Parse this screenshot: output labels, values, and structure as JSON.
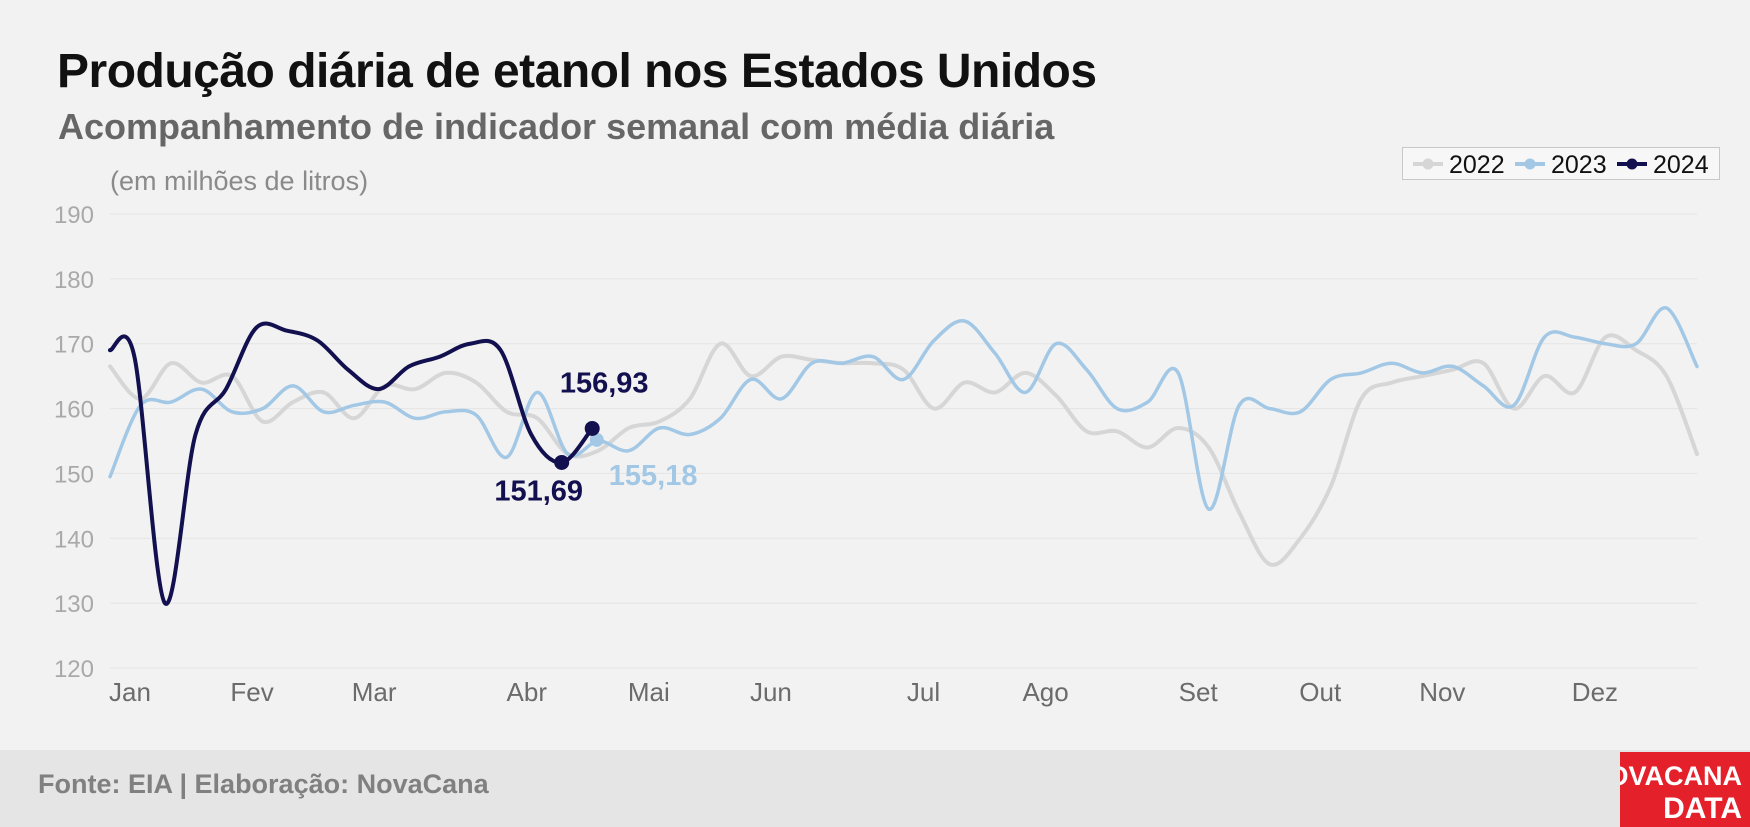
{
  "title": "Produção diária de etanol nos Estados Unidos",
  "subtitle": "Acompanhamento de indicador semanal com média diária",
  "unit_note": "(em milhões de litros)",
  "source": "Fonte: EIA | Elaboração: NovaCana",
  "logo": {
    "line1": "NOVACANA",
    "line2": "DATA"
  },
  "colors": {
    "2022": "#d6d6d6",
    "2023": "#a2c8e6",
    "2024": "#12104f",
    "background": "#f2f2f2",
    "grid": "#e4e4e4",
    "logo_bg": "#e4202a"
  },
  "chart_data": {
    "type": "line",
    "title": "Produção diária de etanol nos Estados Unidos",
    "subtitle": "Acompanhamento de indicador semanal com média diária",
    "ylabel": "(em milhões de litros)",
    "xlabel": "",
    "ylim": [
      120,
      190
    ],
    "yticks": [
      120,
      130,
      140,
      150,
      160,
      170,
      180,
      190
    ],
    "xlim": [
      0,
      52
    ],
    "month_labels": [
      "Jan",
      "Fev",
      "Mar",
      "Abr",
      "Mai",
      "Jun",
      "Jul",
      "Ago",
      "Set",
      "Out",
      "Nov",
      "Dez"
    ],
    "month_weeks": [
      0,
      4,
      8,
      13,
      17,
      21,
      26,
      30,
      35,
      39,
      43,
      48
    ],
    "grid": true,
    "legend_position": "top-right",
    "series": [
      {
        "name": "2022",
        "color": "#d6d6d6",
        "points": [
          [
            0,
            166.5
          ],
          [
            1,
            161.5
          ],
          [
            2,
            167
          ],
          [
            3,
            164
          ],
          [
            4,
            165
          ],
          [
            5,
            158
          ],
          [
            6,
            161
          ],
          [
            7,
            162.5
          ],
          [
            8,
            158.5
          ],
          [
            9,
            163.5
          ],
          [
            10,
            163
          ],
          [
            11,
            165.5
          ],
          [
            12,
            164
          ],
          [
            13,
            159.5
          ],
          [
            14,
            158.5
          ],
          [
            15,
            153
          ],
          [
            16,
            153.5
          ],
          [
            17,
            157
          ],
          [
            18,
            158
          ],
          [
            19,
            161.5
          ],
          [
            20,
            170
          ],
          [
            21,
            165
          ],
          [
            22,
            168
          ],
          [
            23,
            167.5
          ],
          [
            24,
            167
          ],
          [
            25,
            167
          ],
          [
            26,
            166
          ],
          [
            27,
            160
          ],
          [
            28,
            164
          ],
          [
            29,
            162.5
          ],
          [
            30,
            165.5
          ],
          [
            31,
            162
          ],
          [
            32,
            156.5
          ],
          [
            33,
            156.5
          ],
          [
            34,
            154
          ],
          [
            35,
            157
          ],
          [
            36,
            154
          ],
          [
            37,
            144
          ],
          [
            38,
            136
          ],
          [
            39,
            140
          ],
          [
            40,
            148
          ],
          [
            41,
            161.5
          ],
          [
            42,
            164
          ],
          [
            43,
            165
          ],
          [
            44,
            166
          ],
          [
            45,
            167
          ],
          [
            46,
            160
          ],
          [
            47,
            165
          ],
          [
            48,
            162.5
          ],
          [
            49,
            171
          ],
          [
            50,
            169
          ],
          [
            51,
            165
          ],
          [
            52,
            153
          ]
        ]
      },
      {
        "name": "2023",
        "color": "#a2c8e6",
        "points": [
          [
            0,
            149.5
          ],
          [
            1,
            160.5
          ],
          [
            2,
            161
          ],
          [
            3,
            163
          ],
          [
            4,
            159.5
          ],
          [
            5,
            160
          ],
          [
            6,
            163.5
          ],
          [
            7,
            159.5
          ],
          [
            8,
            160.5
          ],
          [
            9,
            161
          ],
          [
            10,
            158.5
          ],
          [
            11,
            159.5
          ],
          [
            12,
            159
          ],
          [
            13,
            152.5
          ],
          [
            14,
            162.5
          ],
          [
            15,
            153
          ],
          [
            16,
            155
          ],
          [
            17,
            153.5
          ],
          [
            18,
            157
          ],
          [
            19,
            156
          ],
          [
            20,
            158.5
          ],
          [
            21,
            164.5
          ],
          [
            22,
            161.5
          ],
          [
            23,
            167
          ],
          [
            24,
            167
          ],
          [
            25,
            168
          ],
          [
            26,
            164.5
          ],
          [
            27,
            170.5
          ],
          [
            28,
            173.5
          ],
          [
            29,
            168.5
          ],
          [
            30,
            162.5
          ],
          [
            31,
            170
          ],
          [
            32,
            166
          ],
          [
            33,
            160
          ],
          [
            34,
            161
          ],
          [
            35,
            165.5
          ],
          [
            36,
            144.5
          ],
          [
            37,
            160.5
          ],
          [
            38,
            160
          ],
          [
            39,
            159.5
          ],
          [
            40,
            164.5
          ],
          [
            41,
            165.5
          ],
          [
            42,
            167
          ],
          [
            43,
            165.5
          ],
          [
            44,
            166.5
          ],
          [
            45,
            163.5
          ],
          [
            46,
            160.5
          ],
          [
            47,
            171
          ],
          [
            48,
            171
          ],
          [
            49,
            170
          ],
          [
            50,
            170
          ],
          [
            51,
            175.5
          ],
          [
            52,
            166.5
          ]
        ]
      },
      {
        "name": "2024",
        "color": "#12104f",
        "points": [
          [
            0,
            169
          ],
          [
            0.8,
            168
          ],
          [
            1.8,
            130
          ],
          [
            2.8,
            156
          ],
          [
            3.8,
            163
          ],
          [
            4.8,
            172.5
          ],
          [
            5.8,
            172
          ],
          [
            6.8,
            170.5
          ],
          [
            7.8,
            166
          ],
          [
            8.8,
            163
          ],
          [
            9.8,
            166.5
          ],
          [
            10.8,
            168
          ],
          [
            11.8,
            170
          ],
          [
            12.8,
            169
          ],
          [
            13.8,
            156
          ],
          [
            14.8,
            151.69
          ],
          [
            15.8,
            156.93
          ]
        ]
      }
    ],
    "annotations": [
      {
        "text": "156,93",
        "series": "2024"
      },
      {
        "text": "151,69",
        "series": "2024"
      },
      {
        "text": "155,18",
        "series": "2023"
      }
    ]
  }
}
